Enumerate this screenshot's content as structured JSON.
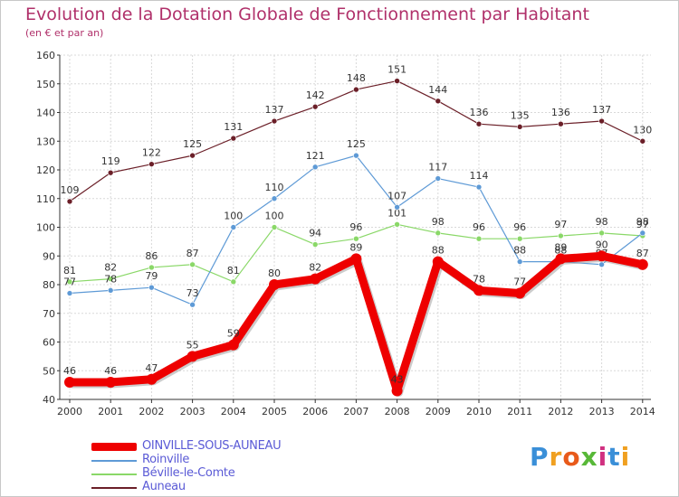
{
  "chart_data": {
    "type": "line",
    "title": "Evolution de la Dotation Globale de Fonctionnement par Habitant",
    "subtitle": "(en € et par an)",
    "xlabel": "",
    "ylabel": "",
    "x": [
      "2000",
      "2001",
      "2002",
      "2003",
      "2004",
      "2005",
      "2006",
      "2007",
      "2008",
      "2009",
      "2010",
      "2011",
      "2012",
      "2013",
      "2014"
    ],
    "ylim": [
      40,
      160
    ],
    "yticks": [
      40,
      50,
      60,
      70,
      80,
      90,
      100,
      110,
      120,
      130,
      140,
      150,
      160
    ],
    "grid": true,
    "legend_position": "bottom-left",
    "series": [
      {
        "name": "Auneau",
        "color": "#6b1f28",
        "values": [
          109,
          119,
          122,
          125,
          131,
          137,
          142,
          148,
          151,
          144,
          136,
          135,
          136,
          137,
          130
        ]
      },
      {
        "name": "Béville-le-Comte",
        "color": "#8ad868",
        "values": [
          81,
          82,
          86,
          87,
          81,
          100,
          94,
          96,
          101,
          98,
          96,
          96,
          97,
          98,
          97
        ]
      },
      {
        "name": "Roinville",
        "color": "#5e9ad6",
        "values": [
          77,
          78,
          79,
          73,
          100,
          110,
          121,
          125,
          107,
          117,
          114,
          88,
          88,
          87,
          98
        ]
      },
      {
        "name": "OINVILLE-SOUS-AUNEAU",
        "color": "#ee0000",
        "values": [
          46,
          46,
          47,
          55,
          59,
          80,
          82,
          89,
          43,
          88,
          78,
          77,
          89,
          90,
          87
        ]
      }
    ]
  },
  "legend": {
    "items": [
      {
        "label": "OINVILLE-SOUS-AUNEAU",
        "color": "#ee0000"
      },
      {
        "label": "Roinville",
        "color": "#5e9ad6"
      },
      {
        "label": "Béville-le-Comte",
        "color": "#8ad868"
      },
      {
        "label": "Auneau",
        "color": "#6b1f28"
      }
    ]
  },
  "brand": {
    "letters": [
      "P",
      "r",
      "o",
      "x",
      "i",
      "t",
      "i"
    ],
    "colors": [
      "#3a8fd8",
      "#f0a020",
      "#e85a1a",
      "#58b838",
      "#d03080",
      "#3a8fd8",
      "#f0a020"
    ]
  }
}
